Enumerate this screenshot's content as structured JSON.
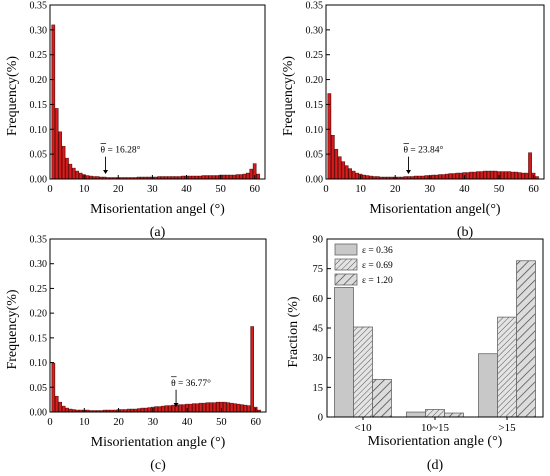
{
  "chart_data": [
    {
      "id": "a",
      "type": "bar",
      "panel_label": "(a)",
      "xlabel": "Misorientation angel (°)",
      "ylabel": "Frequency(%)",
      "xlim": [
        0,
        63
      ],
      "ylim": [
        0,
        0.35
      ],
      "xticks": [
        "0",
        "10",
        "20",
        "30",
        "40",
        "50",
        "60"
      ],
      "yticks": [
        "0.00",
        "0.05",
        "0.10",
        "0.15",
        "0.20",
        "0.25",
        "0.30",
        "0.35"
      ],
      "bin_width": 1,
      "bin_start": 1,
      "values": [
        0.31,
        0.142,
        0.095,
        0.066,
        0.042,
        0.03,
        0.022,
        0.016,
        0.012,
        0.009,
        0.007,
        0.006,
        0.005,
        0.005,
        0.004,
        0.004,
        0.003,
        0.003,
        0.003,
        0.003,
        0.003,
        0.003,
        0.003,
        0.003,
        0.003,
        0.004,
        0.004,
        0.004,
        0.004,
        0.004,
        0.004,
        0.005,
        0.005,
        0.005,
        0.005,
        0.005,
        0.005,
        0.005,
        0.006,
        0.006,
        0.006,
        0.006,
        0.006,
        0.006,
        0.007,
        0.007,
        0.007,
        0.007,
        0.007,
        0.008,
        0.008,
        0.008,
        0.008,
        0.008,
        0.009,
        0.009,
        0.01,
        0.012,
        0.02,
        0.031,
        0.01
      ],
      "annotation": {
        "text": "θ = 16.28°",
        "x": 16.28
      }
    },
    {
      "id": "b",
      "type": "bar",
      "panel_label": "(b)",
      "xlabel": "Misorientation angel(°)",
      "ylabel": "Frequency(%)",
      "xlim": [
        0,
        63
      ],
      "ylim": [
        0,
        0.35
      ],
      "xticks": [
        "0",
        "10",
        "20",
        "30",
        "40",
        "50",
        "60"
      ],
      "yticks": [
        "0.00",
        "0.05",
        "0.10",
        "0.15",
        "0.20",
        "0.25",
        "0.30",
        "0.35"
      ],
      "bin_width": 1,
      "bin_start": 1,
      "values": [
        0.172,
        0.088,
        0.06,
        0.045,
        0.035,
        0.027,
        0.021,
        0.016,
        0.012,
        0.01,
        0.008,
        0.007,
        0.006,
        0.005,
        0.005,
        0.004,
        0.004,
        0.004,
        0.004,
        0.004,
        0.004,
        0.004,
        0.005,
        0.005,
        0.005,
        0.006,
        0.006,
        0.006,
        0.007,
        0.007,
        0.008,
        0.008,
        0.009,
        0.009,
        0.01,
        0.011,
        0.011,
        0.012,
        0.012,
        0.013,
        0.013,
        0.014,
        0.014,
        0.015,
        0.015,
        0.016,
        0.016,
        0.016,
        0.016,
        0.015,
        0.015,
        0.015,
        0.015,
        0.014,
        0.014,
        0.013,
        0.012,
        0.012,
        0.053,
        0.012,
        0.005
      ],
      "annotation": {
        "text": "θ = 23.84°",
        "x": 23.84
      }
    },
    {
      "id": "c",
      "type": "bar",
      "panel_label": "(c)",
      "xlabel": "Misorientation angle (°)",
      "ylabel": "Frequency(%)",
      "xlim": [
        0,
        63
      ],
      "ylim": [
        0,
        0.35
      ],
      "xticks": [
        "0",
        "10",
        "20",
        "30",
        "40",
        "50",
        "60"
      ],
      "yticks": [
        "0.00",
        "0.05",
        "0.10",
        "0.15",
        "0.20",
        "0.25",
        "0.30",
        "0.35"
      ],
      "bin_width": 1,
      "bin_start": 1,
      "values": [
        0.099,
        0.032,
        0.02,
        0.012,
        0.008,
        0.006,
        0.005,
        0.004,
        0.004,
        0.004,
        0.004,
        0.003,
        0.003,
        0.003,
        0.003,
        0.004,
        0.004,
        0.004,
        0.004,
        0.005,
        0.005,
        0.005,
        0.006,
        0.006,
        0.006,
        0.007,
        0.008,
        0.008,
        0.009,
        0.01,
        0.011,
        0.011,
        0.012,
        0.013,
        0.013,
        0.014,
        0.014,
        0.015,
        0.015,
        0.016,
        0.016,
        0.017,
        0.017,
        0.018,
        0.018,
        0.019,
        0.019,
        0.019,
        0.02,
        0.02,
        0.02,
        0.019,
        0.018,
        0.017,
        0.016,
        0.015,
        0.014,
        0.013,
        0.173,
        0.01,
        0.004
      ],
      "annotation": {
        "text": "θ = 36.77°",
        "x": 36.77
      }
    },
    {
      "id": "d",
      "type": "bar",
      "panel_label": "(d)",
      "xlabel": "Misorientation angle (°)",
      "ylabel": "Fraction (%)",
      "ylim": [
        0,
        90
      ],
      "yticks": [
        "0",
        "15",
        "30",
        "45",
        "60",
        "75",
        "90"
      ],
      "categories": [
        "<10",
        "10~15",
        ">15"
      ],
      "series": [
        {
          "name": "ε = 0.36",
          "values": [
            65.5,
            2.5,
            32.0
          ],
          "color": "#c8c8c8",
          "pattern": "solid"
        },
        {
          "name": "ε = 0.69",
          "values": [
            45.5,
            3.8,
            50.5
          ],
          "color": "#d4d4d4",
          "pattern": "hatch-fine"
        },
        {
          "name": "ε = 1.20",
          "values": [
            19.0,
            2.0,
            79.0
          ],
          "color": "#d4d4d4",
          "pattern": "hatch-coarse"
        }
      ],
      "legend_position": "top-left"
    }
  ]
}
